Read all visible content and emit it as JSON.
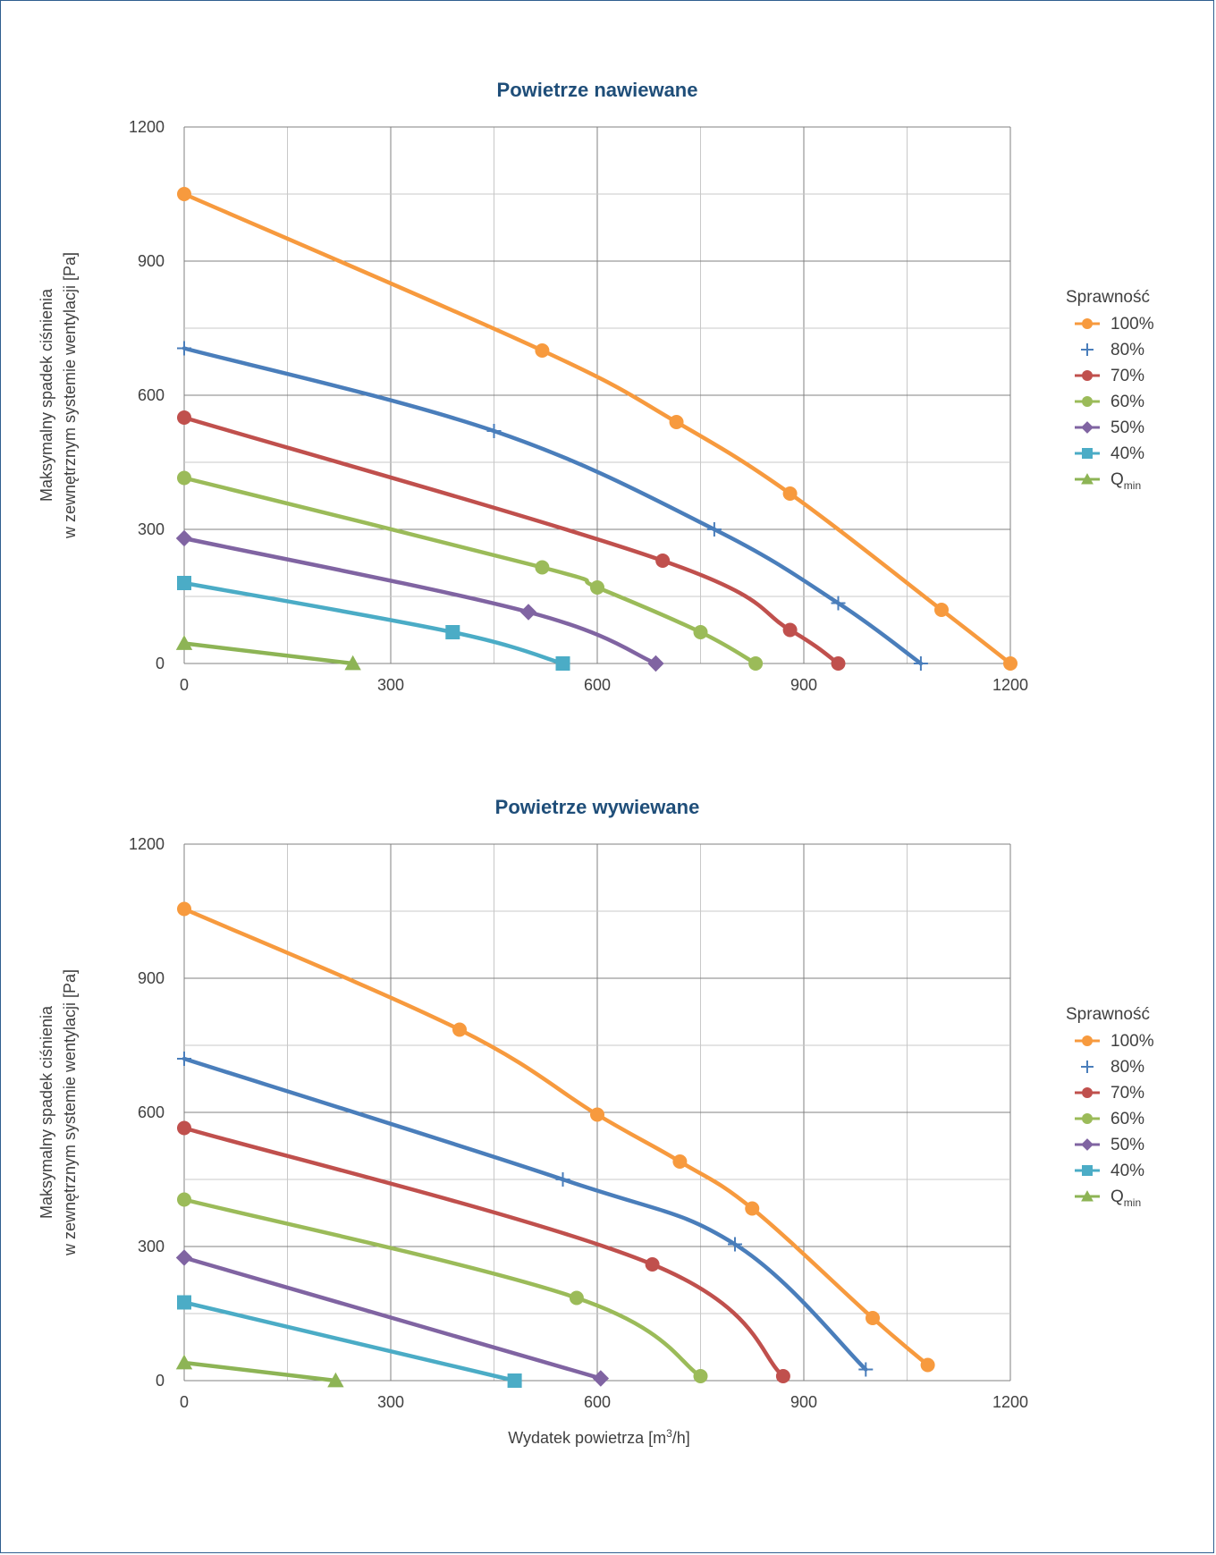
{
  "colors": {
    "frame": "#2f5f8f",
    "title": "#1f4e79",
    "grid_major": "#808080",
    "grid_minor": "#c8c8c8",
    "s100": "#f79a3e",
    "s80": "#4a7ebb",
    "s70": "#c0504d",
    "s60": "#9bbb59",
    "s50": "#8064a2",
    "s40": "#4bacc6",
    "qmin": "#8db455"
  },
  "xlabel_main": "Wydatek powietrza [m",
  "xlabel_sup": "3",
  "xlabel_tail": "/h]",
  "chart_data": [
    {
      "type": "line",
      "title": "Powietrze nawiewane",
      "ylabel_line1": "Maksymalny spadek ciśnienia",
      "ylabel_line2": "w zewnętrznym systemie wentylacji [Pa]",
      "xlim": [
        0,
        1200
      ],
      "ylim": [
        0,
        1200
      ],
      "x_ticks": [
        "0",
        "300",
        "600",
        "900",
        "1200"
      ],
      "y_ticks": [
        "0",
        "300",
        "600",
        "900",
        "1200"
      ],
      "legend_title": "Sprawność",
      "legend_position": "right",
      "grid": true,
      "series": [
        {
          "name": "100%",
          "marker": "circle",
          "color_key": "s100",
          "x": [
            0,
            520,
            715,
            880,
            1100,
            1200
          ],
          "y": [
            1050,
            700,
            540,
            380,
            120,
            0
          ]
        },
        {
          "name": "80%",
          "marker": "plus",
          "color_key": "s80",
          "x": [
            0,
            450,
            770,
            950,
            1070
          ],
          "y": [
            705,
            520,
            300,
            135,
            0
          ]
        },
        {
          "name": "70%",
          "marker": "circle",
          "color_key": "s70",
          "x": [
            0,
            695,
            880,
            950
          ],
          "y": [
            550,
            230,
            75,
            0
          ]
        },
        {
          "name": "60%",
          "marker": "circle",
          "color_key": "s60",
          "x": [
            0,
            520,
            600,
            750,
            830
          ],
          "y": [
            415,
            215,
            170,
            70,
            0
          ]
        },
        {
          "name": "50%",
          "marker": "diamond",
          "color_key": "s50",
          "x": [
            0,
            500,
            685
          ],
          "y": [
            280,
            115,
            0
          ]
        },
        {
          "name": "40%",
          "marker": "square",
          "color_key": "s40",
          "x": [
            0,
            390,
            550
          ],
          "y": [
            180,
            70,
            0
          ]
        },
        {
          "name": "Q",
          "name_sub": "min",
          "marker": "triangle",
          "color_key": "qmin",
          "x": [
            0,
            245
          ],
          "y": [
            45,
            0
          ]
        }
      ]
    },
    {
      "type": "line",
      "title": "Powietrze wywiewane",
      "ylabel_line1": "Maksymalny spadek ciśnienia",
      "ylabel_line2": "w zewnętrznym systemie wentylacji [Pa]",
      "xlim": [
        0,
        1200
      ],
      "ylim": [
        0,
        1200
      ],
      "x_ticks": [
        "0",
        "300",
        "600",
        "900",
        "1200"
      ],
      "y_ticks": [
        "0",
        "300",
        "600",
        "900",
        "1200"
      ],
      "legend_title": "Sprawność",
      "legend_position": "right",
      "grid": true,
      "series": [
        {
          "name": "100%",
          "marker": "circle",
          "color_key": "s100",
          "x": [
            0,
            400,
            600,
            720,
            825,
            1000,
            1080
          ],
          "y": [
            1055,
            785,
            595,
            490,
            385,
            140,
            35
          ]
        },
        {
          "name": "80%",
          "marker": "plus",
          "color_key": "s80",
          "x": [
            0,
            550,
            800,
            990
          ],
          "y": [
            720,
            450,
            305,
            25
          ]
        },
        {
          "name": "70%",
          "marker": "circle",
          "color_key": "s70",
          "x": [
            0,
            680,
            870
          ],
          "y": [
            565,
            260,
            10
          ]
        },
        {
          "name": "60%",
          "marker": "circle",
          "color_key": "s60",
          "x": [
            0,
            570,
            750
          ],
          "y": [
            405,
            185,
            10
          ]
        },
        {
          "name": "50%",
          "marker": "diamond",
          "color_key": "s50",
          "x": [
            0,
            605
          ],
          "y": [
            275,
            5
          ]
        },
        {
          "name": "40%",
          "marker": "square",
          "color_key": "s40",
          "x": [
            0,
            480
          ],
          "y": [
            175,
            0
          ]
        },
        {
          "name": "Q",
          "name_sub": "min",
          "marker": "triangle",
          "color_key": "qmin",
          "x": [
            0,
            220
          ],
          "y": [
            40,
            0
          ]
        }
      ]
    }
  ]
}
